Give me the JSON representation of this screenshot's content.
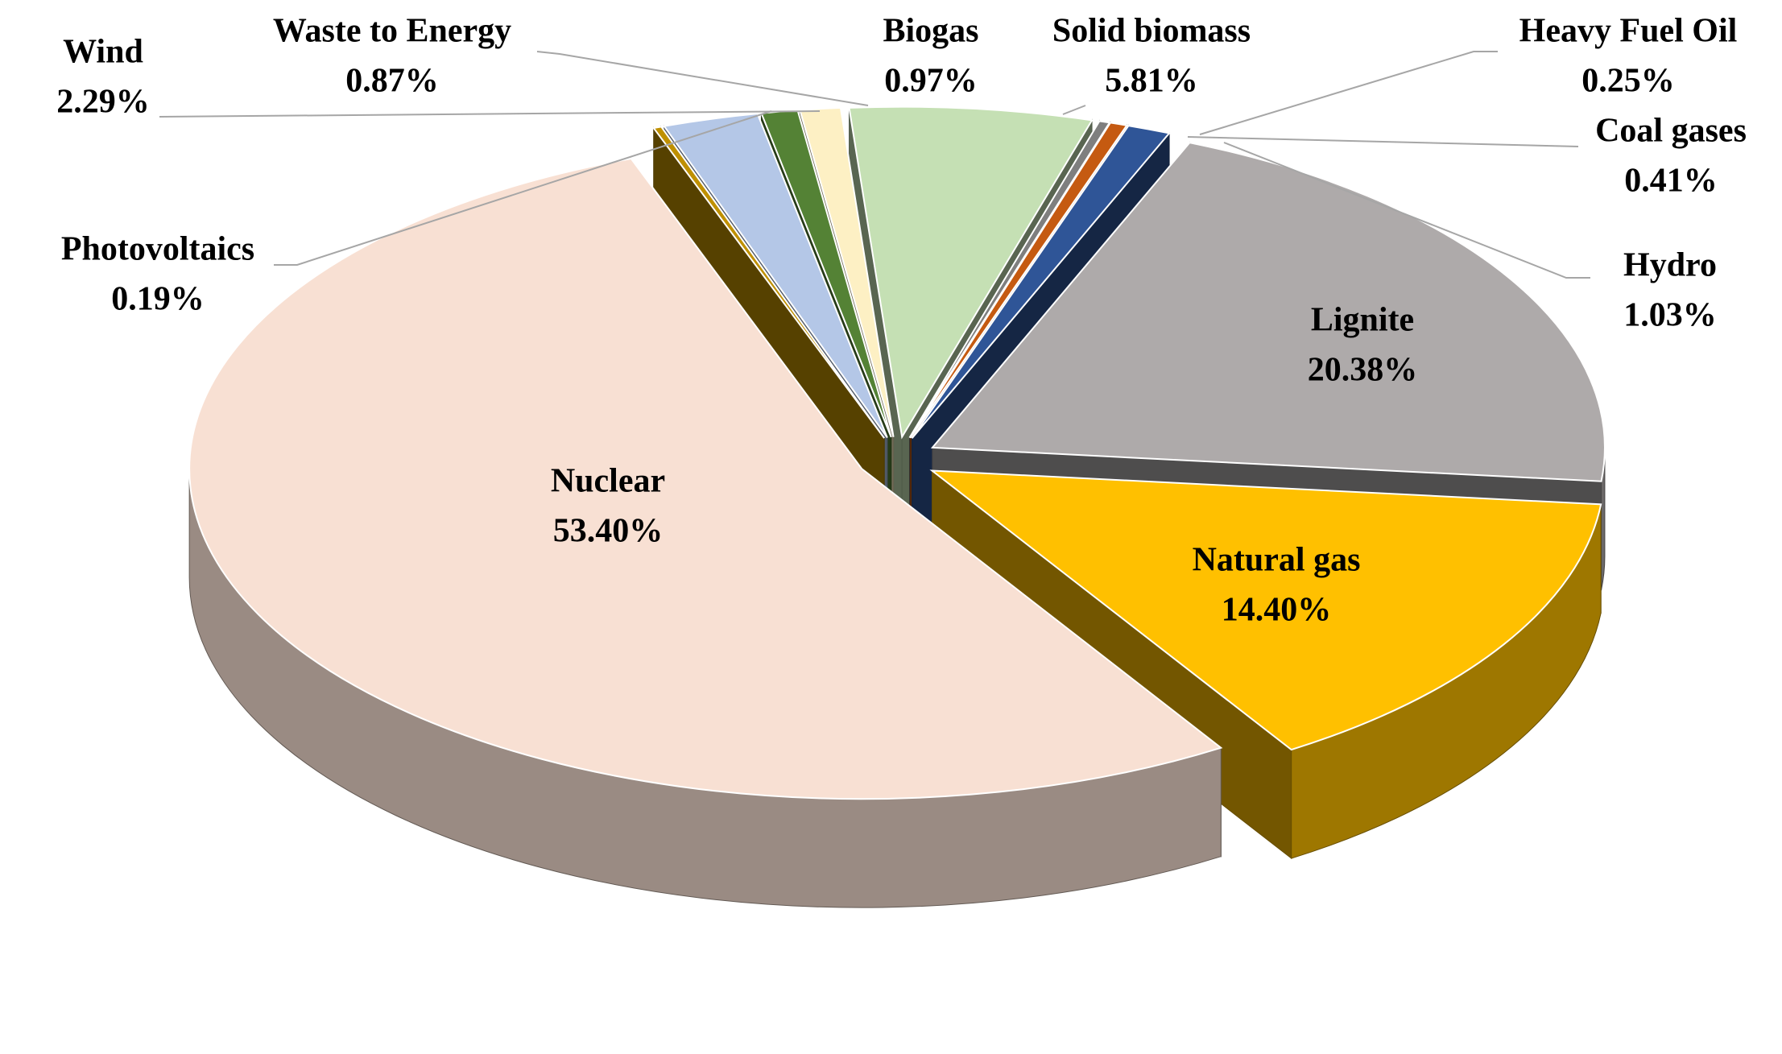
{
  "chart_data": {
    "type": "pie",
    "categories": [
      "Biogas",
      "Solid biomass",
      "Heavy Fuel Oil",
      "Coal gases",
      "Hydro",
      "Lignite",
      "Natural gas",
      "Nuclear",
      "Photovoltaics",
      "Wind",
      "Waste to Energy"
    ],
    "values": [
      0.97,
      5.81,
      0.25,
      0.41,
      1.03,
      20.38,
      14.4,
      53.4,
      0.19,
      2.29,
      0.87
    ],
    "value_labels": [
      "0.97%",
      "5.81%",
      "0.25%",
      "0.41%",
      "1.03%",
      "20.38%",
      "14.40%",
      "53.40%",
      "0.19%",
      "2.29%",
      "0.87%"
    ],
    "colors": [
      "#fdf0c4",
      "#c5e0b4",
      "#7f7f7f",
      "#c55a11",
      "#2f5597",
      "#aeaaaa",
      "#ffc000",
      "#f8e0d3",
      "#bf9000",
      "#b4c7e7",
      "#548235"
    ]
  }
}
